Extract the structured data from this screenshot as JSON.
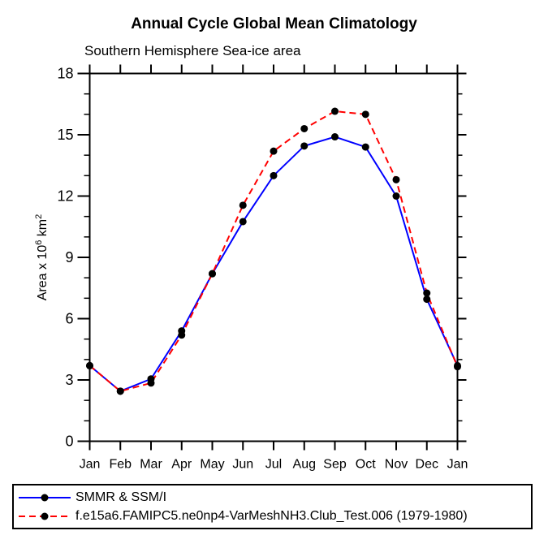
{
  "title": "Annual Cycle Global Mean Climatology",
  "subtitle": "Southern Hemisphere Sea-ice area",
  "y_axis_label_parts": {
    "prefix": "Area x 10",
    "sup1": "6",
    "mid": " km",
    "sup2": "2"
  },
  "chart_data": {
    "type": "line",
    "title": "Annual Cycle Global Mean Climatology",
    "subtitle": "Southern Hemisphere Sea-ice area",
    "xlabel": "",
    "ylabel": "Area x 10⁶ km²",
    "categories": [
      "Jan",
      "Feb",
      "Mar",
      "Apr",
      "May",
      "Jun",
      "Jul",
      "Aug",
      "Sep",
      "Oct",
      "Nov",
      "Dec",
      "Jan"
    ],
    "ylim": [
      0,
      18
    ],
    "yticks": [
      0,
      3,
      6,
      9,
      12,
      15,
      18
    ],
    "ytick_labels": [
      "0",
      "3",
      "6",
      "9",
      "12",
      "15",
      "18"
    ],
    "yminor_step": 1,
    "grid": false,
    "legend_position": "bottom-left-box",
    "marker_color": "#000000",
    "series": [
      {
        "name": "SMMR & SSM/I",
        "color": "#0000ff",
        "line_style": "solid",
        "marker": "filled-circle",
        "values": [
          3.7,
          2.45,
          3.05,
          5.4,
          8.2,
          10.75,
          13.0,
          14.45,
          14.9,
          14.4,
          12.0,
          6.95,
          3.7
        ]
      },
      {
        "name": "f.e15a6.FAMIPC5.ne0np4-VarMeshNH3.Club_Test.006 (1979-1980)",
        "color": "#ff0000",
        "line_style": "dashed",
        "marker": "filled-circle",
        "values": [
          3.7,
          2.45,
          2.85,
          5.2,
          8.2,
          11.55,
          14.2,
          15.3,
          16.15,
          16.0,
          12.8,
          7.25,
          3.65
        ]
      }
    ]
  }
}
